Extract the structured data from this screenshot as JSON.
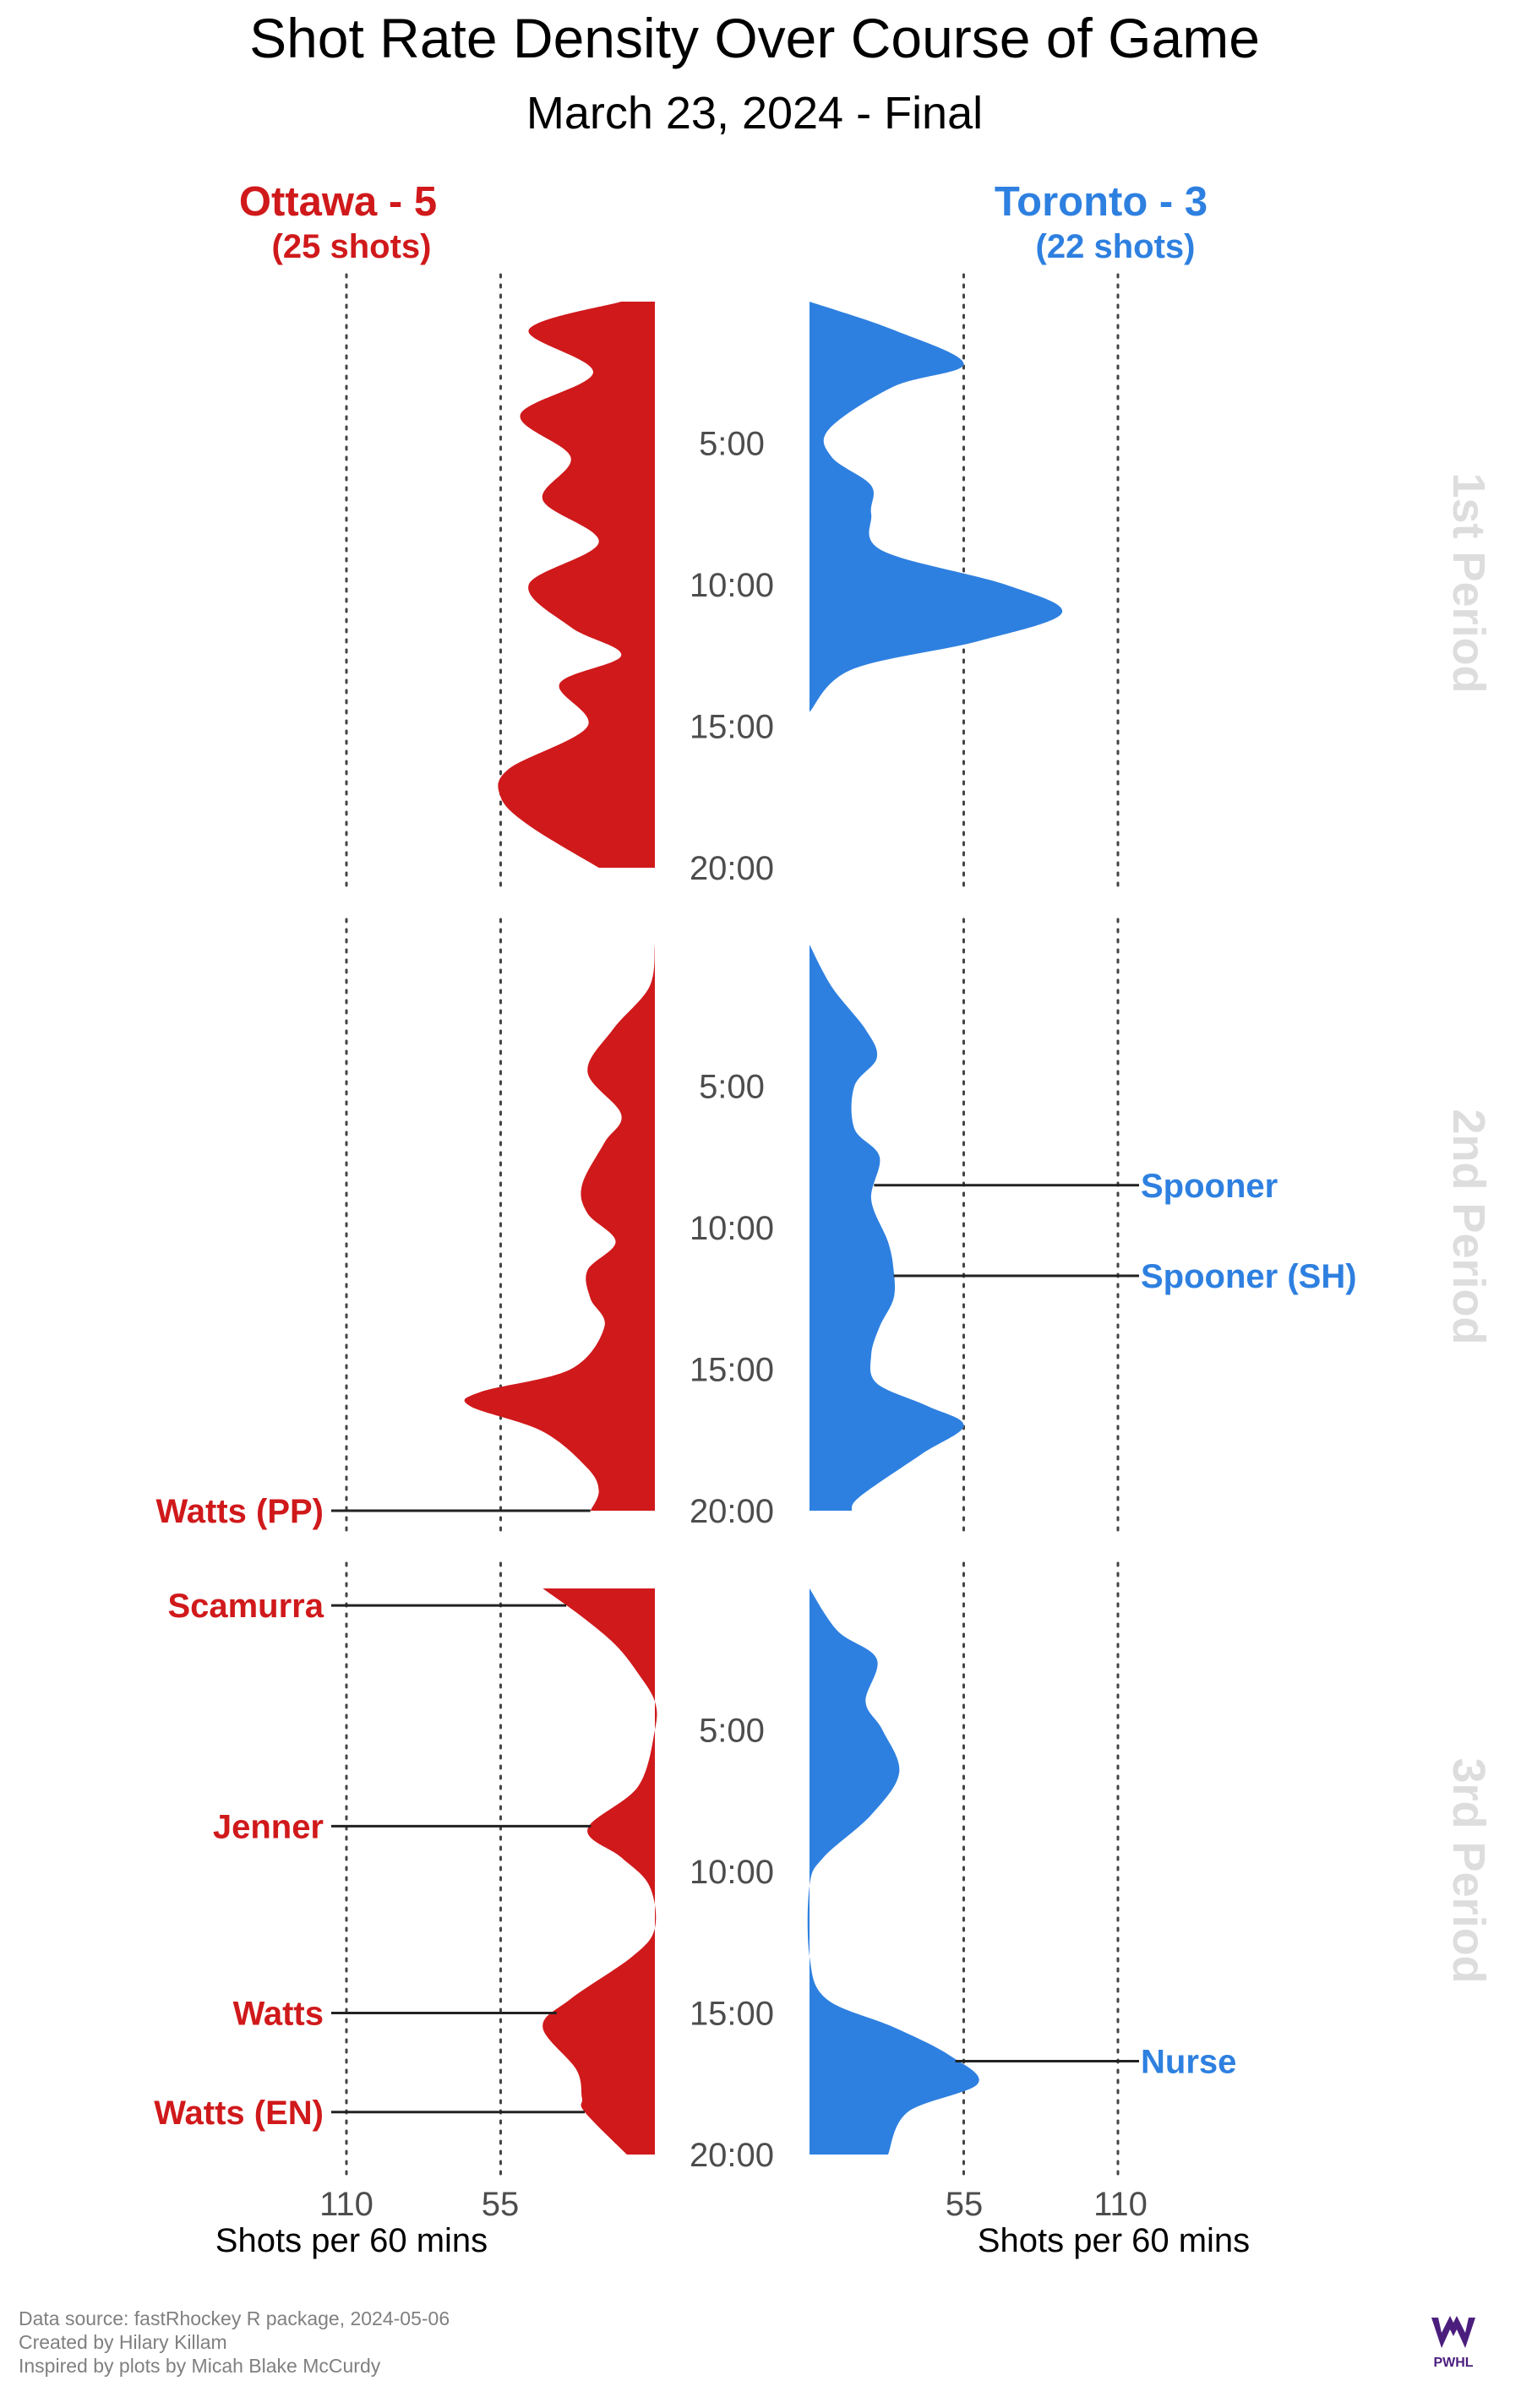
{
  "chart_data": {
    "type": "area",
    "title": "Shot Rate Density Over Course of Game",
    "subtitle": "March 23, 2024 - Final",
    "home": {
      "name": "Ottawa - 5",
      "shots": "(25 shots)",
      "color": "#D0191B"
    },
    "away": {
      "name": "Toronto - 3",
      "shots": "(22 shots)",
      "color": "#2E80E0"
    },
    "x_ticks": [
      "110",
      "55"
    ],
    "x_ticks_away": [
      "55",
      "110"
    ],
    "x_label": "Shots per 60 mins",
    "period_labels": [
      "1st Period",
      "2nd Period",
      "3rd Period"
    ],
    "minute_ticks": [
      "5:00",
      "10:00",
      "15:00",
      "20:00"
    ],
    "xlim_shots_per_60": [
      0,
      110
    ],
    "ylim_minutes": [
      0,
      20
    ],
    "grid_values": [
      55,
      110
    ],
    "ottawa_density": [
      [
        [
          0,
          12
        ],
        [
          1,
          45
        ],
        [
          2.5,
          22
        ],
        [
          4,
          48
        ],
        [
          5.5,
          30
        ],
        [
          7,
          40
        ],
        [
          8.5,
          20
        ],
        [
          10,
          45
        ],
        [
          11.5,
          30
        ],
        [
          12.5,
          12
        ],
        [
          13.5,
          34
        ],
        [
          15,
          24
        ],
        [
          16.5,
          52
        ],
        [
          17.5,
          55
        ],
        [
          18.5,
          45
        ],
        [
          20,
          20
        ]
      ],
      [
        [
          0,
          0
        ],
        [
          1.5,
          2
        ],
        [
          3,
          15
        ],
        [
          4.5,
          24
        ],
        [
          6,
          12
        ],
        [
          7,
          18
        ],
        [
          8.5,
          26
        ],
        [
          9.5,
          24
        ],
        [
          10.5,
          14
        ],
        [
          11.5,
          24
        ],
        [
          12.5,
          23
        ],
        [
          13.5,
          18
        ],
        [
          15,
          30
        ],
        [
          15.8,
          62
        ],
        [
          16.3,
          66
        ],
        [
          17.2,
          40
        ],
        [
          18.5,
          24
        ],
        [
          19.3,
          20
        ],
        [
          20,
          23
        ]
      ],
      [
        [
          0,
          40
        ],
        [
          1,
          26
        ],
        [
          2,
          14
        ],
        [
          3,
          6
        ],
        [
          4,
          0
        ],
        [
          5,
          0
        ],
        [
          7,
          6
        ],
        [
          8.5,
          24
        ],
        [
          9.5,
          12
        ],
        [
          10.5,
          2
        ],
        [
          12,
          0
        ],
        [
          13,
          8
        ],
        [
          14.5,
          30
        ],
        [
          15.5,
          40
        ],
        [
          17,
          28
        ],
        [
          18,
          26
        ],
        [
          18.5,
          25
        ],
        [
          20,
          10
        ]
      ]
    ],
    "toronto_density": [
      [
        [
          0,
          0
        ],
        [
          1,
          30
        ],
        [
          2.2,
          55
        ],
        [
          3,
          30
        ],
        [
          4.5,
          7
        ],
        [
          5.5,
          8
        ],
        [
          6.5,
          22
        ],
        [
          7.5,
          22
        ],
        [
          8.8,
          26
        ],
        [
          10,
          70
        ],
        [
          11,
          90
        ],
        [
          12,
          60
        ],
        [
          13,
          15
        ],
        [
          14.5,
          0
        ]
      ],
      [
        [
          0,
          0
        ],
        [
          1.5,
          8
        ],
        [
          3,
          20
        ],
        [
          4,
          24
        ],
        [
          5,
          16
        ],
        [
          6.5,
          16
        ],
        [
          7.5,
          25
        ],
        [
          9,
          22
        ],
        [
          10.5,
          28
        ],
        [
          11.5,
          30
        ],
        [
          12.5,
          30
        ],
        [
          13.5,
          25
        ],
        [
          14.5,
          22
        ],
        [
          15.5,
          24
        ],
        [
          16.3,
          42
        ],
        [
          17,
          55
        ],
        [
          18,
          40
        ],
        [
          19.5,
          18
        ],
        [
          20,
          15
        ]
      ],
      [
        [
          0,
          0
        ],
        [
          1.5,
          10
        ],
        [
          2.5,
          24
        ],
        [
          4,
          20
        ],
        [
          5,
          26
        ],
        [
          6.5,
          32
        ],
        [
          8,
          22
        ],
        [
          9.5,
          5
        ],
        [
          10.5,
          0
        ],
        [
          13,
          0
        ],
        [
          14.5,
          6
        ],
        [
          15.5,
          30
        ],
        [
          16.5,
          50
        ],
        [
          17.5,
          60
        ],
        [
          18.5,
          35
        ],
        [
          20,
          28
        ]
      ]
    ],
    "goals": {
      "ottawa": [
        {
          "label": "Watts (PP)",
          "period": 2,
          "minute": 20.0
        },
        {
          "label": "Scamurra",
          "period": 3,
          "minute": 0.6
        },
        {
          "label": "Jenner",
          "period": 3,
          "minute": 8.4
        },
        {
          "label": "Watts",
          "period": 3,
          "minute": 15.0
        },
        {
          "label": "Watts (EN)",
          "period": 3,
          "minute": 18.5
        }
      ],
      "toronto": [
        {
          "label": "Spooner",
          "period": 2,
          "minute": 8.5
        },
        {
          "label": "Spooner (SH)",
          "period": 2,
          "minute": 11.7
        },
        {
          "label": "Nurse",
          "period": 3,
          "minute": 16.7
        }
      ]
    }
  },
  "footer": {
    "line1": "Data source: fastRhockey R package, 2024-05-06",
    "line2": "Created by Hilary Killam",
    "line3": "Inspired by plots by Micah Blake McCurdy"
  },
  "logo_text": "PWHL"
}
